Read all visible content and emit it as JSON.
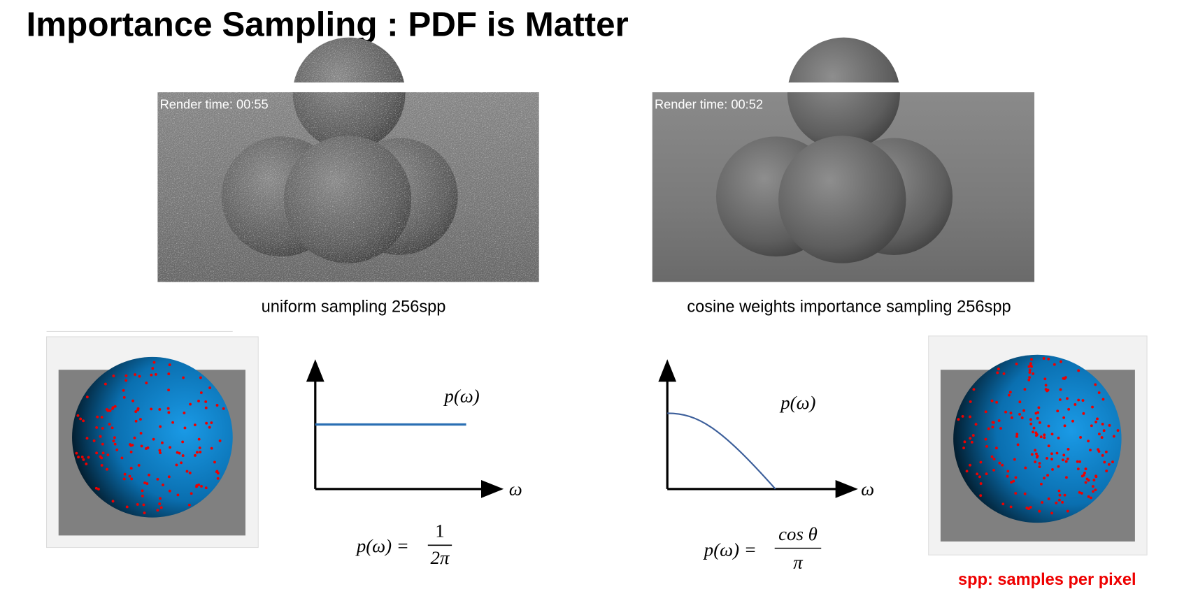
{
  "title": "Importance Sampling : PDF is Matter",
  "panels": [
    {
      "render_time": "Render time: 00:55",
      "caption": "uniform sampling 256spp",
      "pdf_label": "p(ω)",
      "axis_label": "ω",
      "formula": {
        "lhs": "p(ω) =",
        "numerator": "1",
        "denominator": "2π"
      }
    },
    {
      "render_time": "Render time: 00:52",
      "caption": "cosine weights importance sampling 256spp",
      "pdf_label": "p(ω)",
      "axis_label": "ω",
      "formula": {
        "lhs": "p(ω) =",
        "numerator": "cos θ",
        "denominator": "π"
      }
    }
  ],
  "footnote": "spp: samples per pixel"
}
